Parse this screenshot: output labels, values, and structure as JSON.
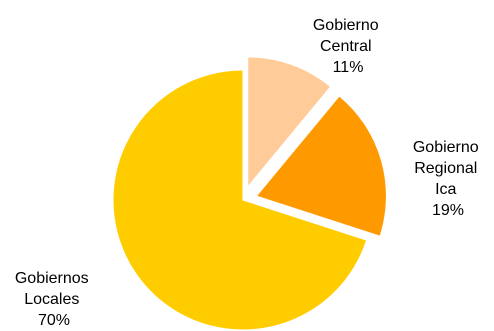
{
  "chart_data": {
    "type": "pie",
    "title": "",
    "slices": [
      {
        "label_lines": [
          "Gobierno",
          "Central"
        ],
        "percent_label": "11%",
        "value": 11,
        "color": "#FFCC99",
        "exploded": true
      },
      {
        "label_lines": [
          "Gobierno",
          "Regional",
          "Ica"
        ],
        "percent_label": "19%",
        "value": 19,
        "color": "#FF9900",
        "exploded": true
      },
      {
        "label_lines": [
          "Gobiernos",
          "Locales"
        ],
        "percent_label": "70%",
        "value": 70,
        "color": "#FFCC00",
        "exploded": false
      }
    ],
    "legend": "none",
    "start_angle_deg": 0,
    "direction": "clockwise"
  }
}
